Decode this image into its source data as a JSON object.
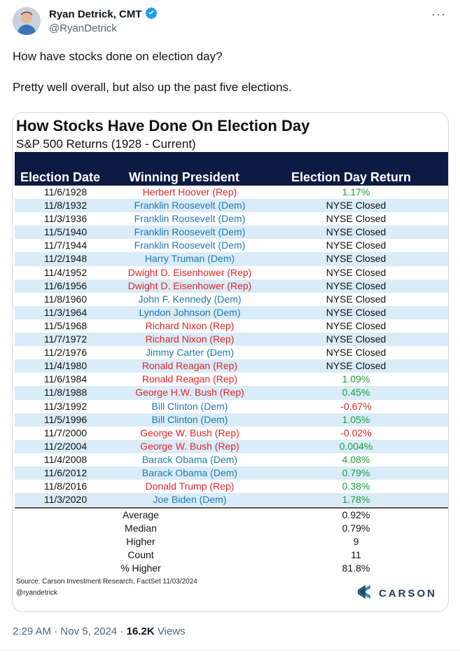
{
  "tweet": {
    "author_name": "Ryan Detrick, CMT",
    "handle": "@RyanDetrick",
    "text_line1": "How have stocks done on election day?",
    "text_line2": "Pretty well overall, but also up the past five elections.",
    "time": "2:29 AM",
    "date": "Nov 5, 2024",
    "views_count": "16.2K",
    "views_label": "Views"
  },
  "table": {
    "title": "How Stocks Have Done On Election Day",
    "subtitle": "S&P 500 Returns (1928 - Current)",
    "headers": [
      "Election Date",
      "Winning President",
      "Election Day Return"
    ],
    "rows": [
      {
        "date": "11/6/1928",
        "president": "Herbert Hoover (Rep)",
        "party": "rep",
        "ret": "1.17%",
        "sign": "pos"
      },
      {
        "date": "11/8/1932",
        "president": "Franklin Roosevelt (Dem)",
        "party": "dem",
        "ret": "NYSE Closed",
        "sign": "none"
      },
      {
        "date": "11/3/1936",
        "president": "Franklin Roosevelt (Dem)",
        "party": "dem",
        "ret": "NYSE Closed",
        "sign": "none"
      },
      {
        "date": "11/5/1940",
        "president": "Franklin Roosevelt (Dem)",
        "party": "dem",
        "ret": "NYSE Closed",
        "sign": "none"
      },
      {
        "date": "11/7/1944",
        "president": "Franklin Roosevelt (Dem)",
        "party": "dem",
        "ret": "NYSE Closed",
        "sign": "none"
      },
      {
        "date": "11/2/1948",
        "president": "Harry Truman (Dem)",
        "party": "dem",
        "ret": "NYSE Closed",
        "sign": "none"
      },
      {
        "date": "11/4/1952",
        "president": "Dwight D. Eisenhower (Rep)",
        "party": "rep",
        "ret": "NYSE Closed",
        "sign": "none"
      },
      {
        "date": "11/6/1956",
        "president": "Dwight D. Eisenhower (Rep)",
        "party": "rep",
        "ret": "NYSE Closed",
        "sign": "none"
      },
      {
        "date": "11/8/1960",
        "president": "John F. Kennedy (Dem)",
        "party": "dem",
        "ret": "NYSE Closed",
        "sign": "none"
      },
      {
        "date": "11/3/1964",
        "president": "Lyndon Johnson (Dem)",
        "party": "dem",
        "ret": "NYSE Closed",
        "sign": "none"
      },
      {
        "date": "11/5/1968",
        "president": "Richard Nixon (Rep)",
        "party": "rep",
        "ret": "NYSE Closed",
        "sign": "none"
      },
      {
        "date": "11/7/1972",
        "president": "Richard Nixon (Rep)",
        "party": "rep",
        "ret": "NYSE Closed",
        "sign": "none"
      },
      {
        "date": "11/2/1976",
        "president": "Jimmy Carter (Dem)",
        "party": "dem",
        "ret": "NYSE Closed",
        "sign": "none"
      },
      {
        "date": "11/4/1980",
        "president": "Ronald Reagan (Rep)",
        "party": "rep",
        "ret": "NYSE Closed",
        "sign": "none"
      },
      {
        "date": "11/6/1984",
        "president": "Ronald Reagan (Rep)",
        "party": "rep",
        "ret": "1.09%",
        "sign": "pos"
      },
      {
        "date": "11/8/1988",
        "president": "George H.W. Bush (Rep)",
        "party": "rep",
        "ret": "0.45%",
        "sign": "pos"
      },
      {
        "date": "11/3/1992",
        "president": "Bill Clinton (Dem)",
        "party": "dem",
        "ret": "-0.67%",
        "sign": "neg"
      },
      {
        "date": "11/5/1996",
        "president": "Bill Clinton (Dem)",
        "party": "dem",
        "ret": "1.05%",
        "sign": "pos"
      },
      {
        "date": "11/7/2000",
        "president": "George W. Bush (Rep)",
        "party": "rep",
        "ret": "-0.02%",
        "sign": "neg"
      },
      {
        "date": "11/2/2004",
        "president": "George W. Bush (Rep)",
        "party": "rep",
        "ret": "0.004%",
        "sign": "pos"
      },
      {
        "date": "11/4/2008",
        "president": "Barack Obama (Dem)",
        "party": "dem",
        "ret": "4.08%",
        "sign": "pos"
      },
      {
        "date": "11/6/2012",
        "president": "Barack Obama (Dem)",
        "party": "dem",
        "ret": "0.79%",
        "sign": "pos"
      },
      {
        "date": "11/8/2016",
        "president": "Donald Trump (Rep)",
        "party": "rep",
        "ret": "0.38%",
        "sign": "pos"
      },
      {
        "date": "11/3/2020",
        "president": "Joe Biden (Dem)",
        "party": "dem",
        "ret": "1.78%",
        "sign": "pos"
      }
    ],
    "summary": [
      {
        "label": "Average",
        "value": "0.92%",
        "sign": "pos"
      },
      {
        "label": "Median",
        "value": "0.79%",
        "sign": "pos"
      },
      {
        "label": "Higher",
        "value": "9",
        "sign": "none"
      },
      {
        "label": "Count",
        "value": "11",
        "sign": "none"
      },
      {
        "label": "% Higher",
        "value": "81.8%",
        "sign": "none"
      }
    ],
    "source": "Source: Carson Investment Research, FactSet 11/03/2024",
    "credit": "@ryandetrick",
    "logo_text": "CARSON"
  },
  "colors": {
    "header_bg": "#0d1a42",
    "rep": "#e0252b",
    "dem": "#1f78b4",
    "positive": "#1a9e3a",
    "stripe": "#d9ecf8",
    "verified": "#1d9bf0"
  },
  "icons": [
    "avatar",
    "verified-badge-icon",
    "more-options-icon",
    "carson-logo-icon"
  ]
}
